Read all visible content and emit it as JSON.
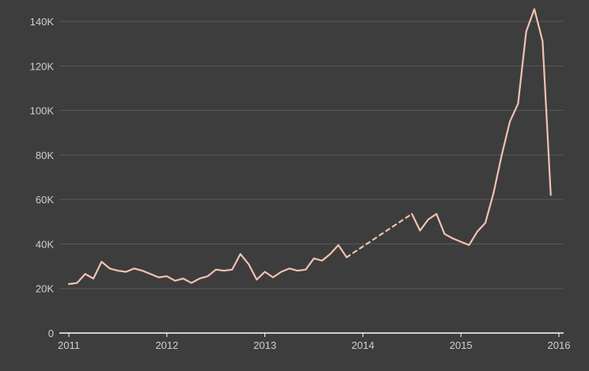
{
  "chart_data": {
    "type": "line",
    "title": "",
    "xlabel": "",
    "ylabel": "",
    "x_ticks": [
      "2011",
      "2012",
      "2013",
      "2014",
      "2015",
      "2016"
    ],
    "y_ticks": [
      "0",
      "20K",
      "40K",
      "60K",
      "80K",
      "100K",
      "120K",
      "140K"
    ],
    "y_tick_values": [
      0,
      20000,
      40000,
      60000,
      80000,
      100000,
      120000,
      140000
    ],
    "xlim": [
      "2011-01",
      "2016-01"
    ],
    "ylim": [
      0,
      150000
    ],
    "grid": true,
    "colors": {
      "background": "#3d3d3d",
      "line": "#f2c2b0",
      "grid": "#5a5a5a",
      "axis": "#ffffff",
      "tick_text": "#cfcfcf"
    },
    "series": [
      {
        "style": "solid",
        "x": [
          "2011-01",
          "2011-02",
          "2011-03",
          "2011-04",
          "2011-05",
          "2011-06",
          "2011-07",
          "2011-08",
          "2011-09",
          "2011-10",
          "2011-11",
          "2011-12",
          "2012-01",
          "2012-02",
          "2012-03",
          "2012-04",
          "2012-05",
          "2012-06",
          "2012-07",
          "2012-08",
          "2012-09",
          "2012-10",
          "2012-11",
          "2012-12",
          "2013-01",
          "2013-02",
          "2013-03",
          "2013-04",
          "2013-05",
          "2013-06",
          "2013-07",
          "2013-08",
          "2013-09",
          "2013-10",
          "2013-11"
        ],
        "y": [
          22000,
          22500,
          26500,
          24500,
          32000,
          29000,
          28000,
          27500,
          29000,
          28000,
          26500,
          25000,
          25500,
          23500,
          24500,
          22500,
          24500,
          25500,
          28500,
          28000,
          28500,
          35500,
          31000,
          24000,
          27500,
          25000,
          27500,
          29000,
          28000,
          28500,
          33500,
          32500,
          35500,
          39500,
          34000
        ]
      },
      {
        "style": "dashed",
        "x": [
          "2013-11",
          "2014-07"
        ],
        "y": [
          34000,
          53500
        ]
      },
      {
        "style": "solid",
        "x": [
          "2014-07",
          "2014-08",
          "2014-09",
          "2014-10",
          "2014-11",
          "2014-12",
          "2015-01",
          "2015-02",
          "2015-03",
          "2015-04",
          "2015-05",
          "2015-06",
          "2015-07",
          "2015-08",
          "2015-09",
          "2015-10",
          "2015-11",
          "2015-12"
        ],
        "y": [
          53500,
          46000,
          51000,
          53500,
          44500,
          42500,
          41000,
          39500,
          45500,
          49500,
          63000,
          80000,
          95000,
          103000,
          135500,
          145500,
          131000,
          62000
        ]
      }
    ]
  }
}
